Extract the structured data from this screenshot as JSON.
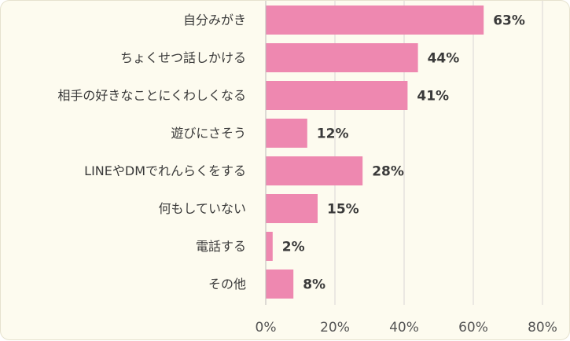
{
  "chart_data": {
    "type": "bar",
    "orientation": "horizontal",
    "title": "",
    "xlabel": "",
    "ylabel": "",
    "categories": [
      "自分みがき",
      "ちょくせつ話しかける",
      "相手の好きなことにくわしくなる",
      "遊びにさそう",
      "LINEやDMでれんらくをする",
      "何もしていない",
      "電話する",
      "その他"
    ],
    "values": [
      63,
      44,
      41,
      12,
      28,
      15,
      2,
      8
    ],
    "value_labels": [
      "63%",
      "44%",
      "41%",
      "12%",
      "28%",
      "15%",
      "2%",
      "8%"
    ],
    "xlim": [
      0,
      80
    ],
    "xticks": [
      0,
      20,
      40,
      60,
      80
    ],
    "xtick_labels": [
      "0%",
      "20%",
      "40%",
      "60%",
      "80%"
    ],
    "grid": "vertical",
    "legend": "none",
    "colors": {
      "bar": "#ee88b0",
      "grid": "#d9d6d6",
      "background": "#fdfbef",
      "text": "#3a3a3a"
    }
  }
}
